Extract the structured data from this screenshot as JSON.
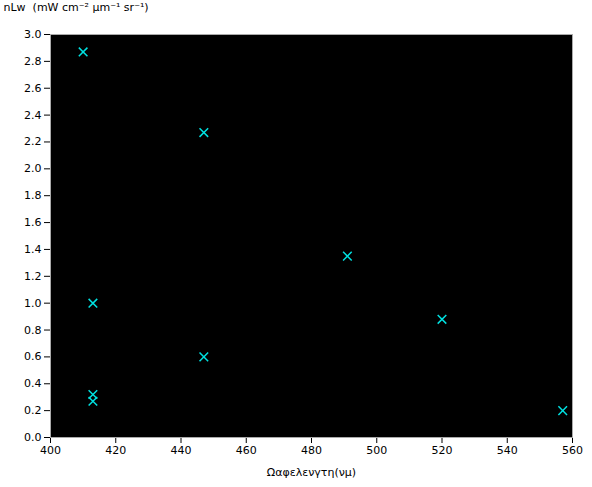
{
  "chart_data": {
    "type": "scatter",
    "x": [
      410,
      413,
      447,
      413,
      447,
      491,
      520,
      413,
      557
    ],
    "values": [
      2.87,
      1.0,
      2.27,
      0.32,
      0.6,
      1.35,
      0.88,
      0.27,
      0.2
    ],
    "color": "#00e0e0",
    "marker": "x",
    "xlabel": "Ωαφελενγτη(νμ)",
    "ylabel": "nLw  (mW cm⁻² μm⁻¹ sr⁻¹)",
    "xlim": [
      400,
      560
    ],
    "ylim": [
      0,
      3
    ],
    "xticks": [
      400,
      420,
      440,
      460,
      480,
      500,
      520,
      540,
      560
    ],
    "yticks": [
      {
        "value": 0,
        "label": "0.0"
      },
      0.2,
      0.4,
      0.6,
      0.8,
      {
        "value": 1,
        "label": "1.0"
      },
      1.2,
      1.4,
      1.6,
      1.8,
      {
        "value": 2,
        "label": "2.0"
      },
      2.2,
      2.4,
      2.6,
      2.8,
      {
        "value": 3,
        "label": "3.0"
      }
    ],
    "grid": false
  }
}
